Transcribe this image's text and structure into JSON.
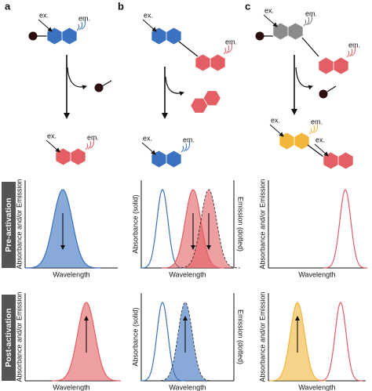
{
  "diagram": {
    "ex": "ex.",
    "em": "em."
  },
  "rows": [
    {
      "label": "Pre-activation"
    },
    {
      "label": "Post-activation"
    }
  ],
  "panels": [
    {
      "label": "a",
      "plots": [
        {
          "y_label": "Absorbance and/or Emission",
          "x_label": "Wavelength"
        },
        {
          "y_label": "Absorbance and/or Emission",
          "x_label": "Wavelength"
        }
      ]
    },
    {
      "label": "b",
      "plots": [
        {
          "y_label": "Absorbance (solid)",
          "y2_label": "Emission (dotted)",
          "x_label": "Wavelength"
        },
        {
          "y_label": "Absorbance (solid)",
          "y2_label": "Emission (dotted)",
          "x_label": "Wavelength"
        }
      ]
    },
    {
      "label": "c",
      "plots": [
        {
          "y_label": "Absorbance and/or Emission",
          "x_label": "Wavelength"
        },
        {
          "y_label": "Absorbance and/or Emission",
          "x_label": "Wavelength"
        }
      ]
    }
  ]
}
